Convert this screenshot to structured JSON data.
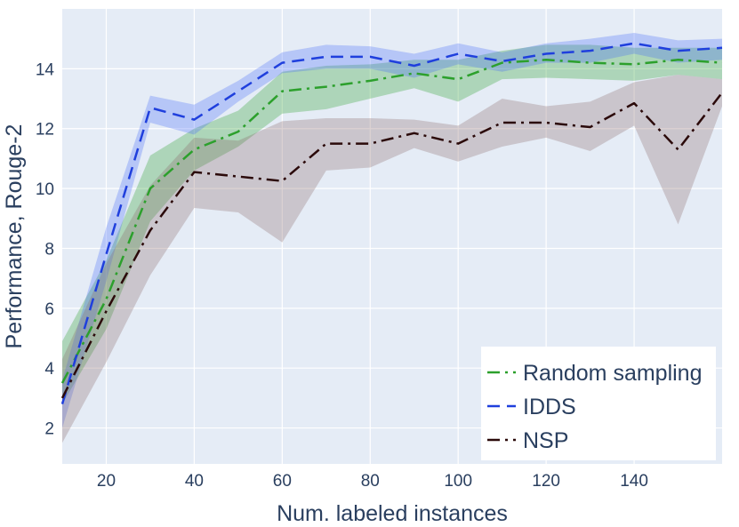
{
  "chart_data": {
    "type": "line",
    "title": "",
    "xlabel": "Num. labeled instances",
    "ylabel": "Performance, Rouge-2",
    "xlim": [
      10,
      160
    ],
    "ylim": [
      0.8,
      16
    ],
    "xticks": [
      20,
      40,
      60,
      80,
      100,
      120,
      140
    ],
    "yticks": [
      2,
      4,
      6,
      8,
      10,
      12,
      14
    ],
    "grid": true,
    "legend_position": "bottom-right",
    "x": [
      10,
      20,
      30,
      40,
      50,
      60,
      70,
      80,
      90,
      100,
      110,
      120,
      130,
      140,
      150,
      160
    ],
    "series": [
      {
        "name": "Random sampling",
        "color": "#2ca02c",
        "band_color": "#2ca02c",
        "dash": "dashdot",
        "values": [
          3.5,
          6.3,
          10.0,
          11.3,
          11.9,
          13.25,
          13.4,
          13.6,
          13.85,
          13.65,
          14.2,
          14.3,
          14.2,
          14.15,
          14.3,
          14.2
        ],
        "lower": [
          2.8,
          5.3,
          8.9,
          10.6,
          11.4,
          12.5,
          12.65,
          13.0,
          13.35,
          12.9,
          13.65,
          13.7,
          13.65,
          13.6,
          13.8,
          13.65
        ],
        "upper": [
          4.9,
          7.6,
          11.1,
          12.0,
          12.6,
          13.9,
          14.1,
          14.15,
          14.3,
          14.3,
          14.6,
          14.8,
          14.8,
          14.7,
          14.7,
          14.7
        ]
      },
      {
        "name": "IDDS",
        "color": "#1f3fdd",
        "band_color": "#4a6cf7",
        "dash": "dash",
        "values": [
          2.8,
          7.8,
          12.7,
          12.3,
          13.25,
          14.2,
          14.4,
          14.4,
          14.1,
          14.5,
          14.25,
          14.5,
          14.6,
          14.85,
          14.6,
          14.7
        ],
        "lower": [
          2.0,
          6.9,
          12.2,
          11.8,
          12.9,
          13.85,
          14.0,
          14.0,
          13.7,
          14.15,
          13.9,
          14.2,
          14.2,
          14.5,
          14.2,
          14.3
        ],
        "upper": [
          3.6,
          8.7,
          13.1,
          12.8,
          13.6,
          14.55,
          14.8,
          14.75,
          14.5,
          14.85,
          14.55,
          14.85,
          15.0,
          15.2,
          14.95,
          15.0
        ]
      },
      {
        "name": "NSP",
        "color": "#2b0a0a",
        "band_color": "#8b6b6b",
        "dash": "dashdot",
        "values": [
          3.0,
          5.9,
          8.6,
          10.55,
          10.4,
          10.25,
          11.5,
          11.5,
          11.85,
          11.5,
          12.2,
          12.2,
          12.05,
          12.85,
          11.3,
          13.2
        ],
        "lower": [
          1.5,
          4.2,
          7.1,
          9.35,
          9.2,
          8.2,
          10.6,
          10.7,
          11.35,
          10.9,
          11.4,
          11.7,
          11.25,
          12.1,
          8.8,
          12.75
        ],
        "upper": [
          4.3,
          7.5,
          10.1,
          11.7,
          11.6,
          12.25,
          12.35,
          12.35,
          12.3,
          12.1,
          13.0,
          12.75,
          12.9,
          13.55,
          13.8,
          13.65
        ]
      }
    ]
  }
}
